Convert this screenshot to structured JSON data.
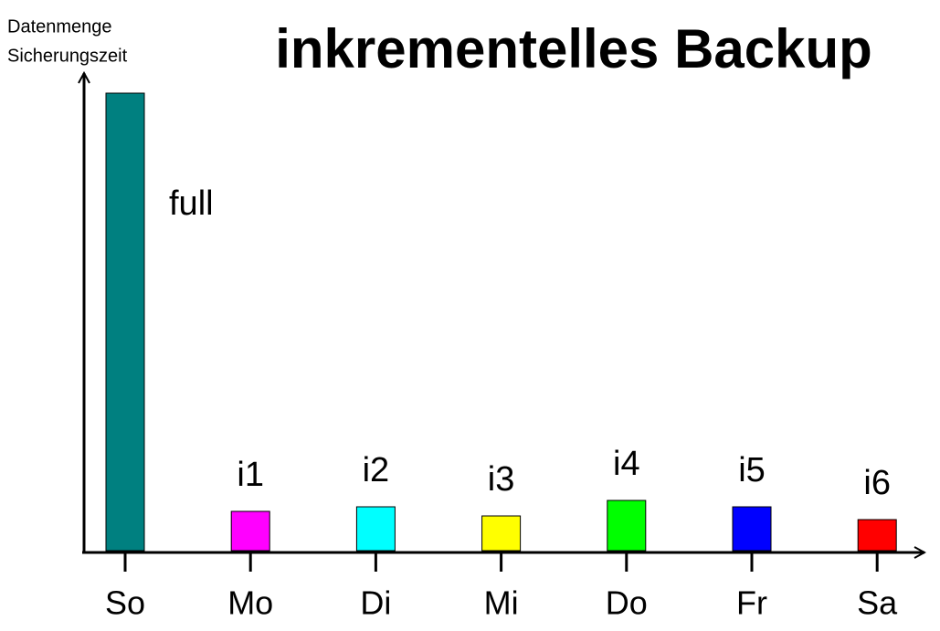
{
  "chart_data": {
    "type": "bar",
    "title": "inkrementelles Backup",
    "y_label": [
      "Datenmenge",
      "Sicherungszeit"
    ],
    "categories": [
      "So",
      "Mo",
      "Di",
      "Mi",
      "Do",
      "Fr",
      "Sa"
    ],
    "values": [
      501,
      43,
      48,
      38,
      55,
      48,
      34
    ],
    "bar_labels": [
      "full",
      "i1",
      "i2",
      "i3",
      "i4",
      "i5",
      "i6"
    ],
    "colors": [
      "#008080",
      "#ff00ff",
      "#00ffff",
      "#ffff00",
      "#00ff00",
      "#0000ff",
      "#ff0000"
    ],
    "ylim": [
      0,
      518
    ]
  }
}
